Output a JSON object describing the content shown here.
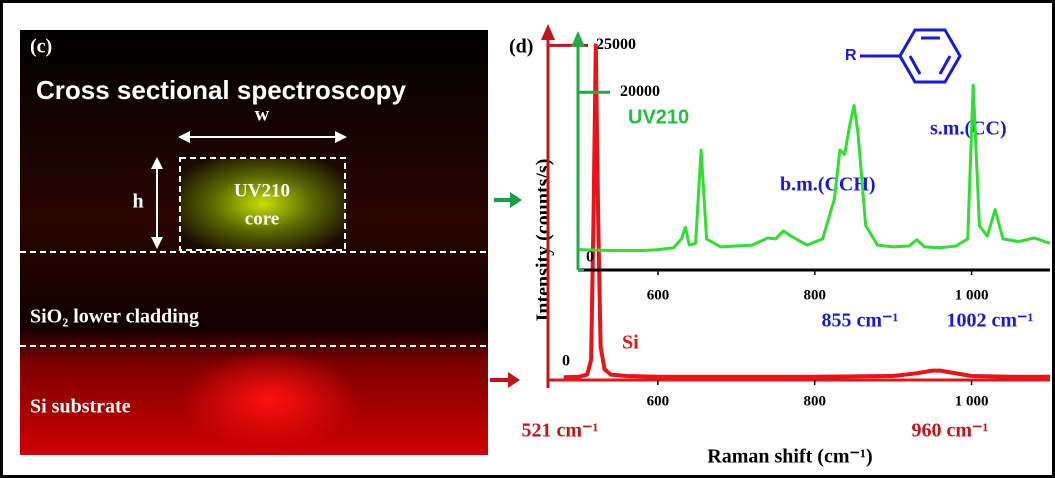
{
  "panel_c": {
    "label": "(c)",
    "title": "Cross sectional spectroscopy",
    "width_label": "w",
    "height_label": "h",
    "core_line1": "UV210",
    "core_line2": "core",
    "cladding": "SiO₂ lower cladding",
    "substrate": "Si substrate"
  },
  "chart_data": [
    {
      "type": "line",
      "title": "(d)",
      "x_label": "Raman shift (cm⁻¹)",
      "y_label": "Intensity (counts/s)",
      "x": [
        480,
        500,
        510,
        515,
        518,
        521,
        524,
        527,
        532,
        540,
        560,
        600,
        700,
        800,
        900,
        930,
        950,
        960,
        970,
        990,
        1000,
        1050,
        1100
      ],
      "series": [
        {
          "name": "Si",
          "color": "#e8141a",
          "values": [
            200,
            250,
            400,
            1500,
            12000,
            25000,
            12000,
            2500,
            800,
            400,
            300,
            250,
            250,
            250,
            300,
            500,
            700,
            700,
            600,
            400,
            300,
            250,
            250
          ]
        }
      ],
      "xlim": [
        460,
        1100
      ],
      "ylim": [
        0,
        26000
      ],
      "xticks": [
        600,
        800,
        {
          "value": 1000,
          "label": "1 000"
        }
      ],
      "yticks": [
        0,
        25000
      ],
      "annotations": [
        "521 cm⁻¹",
        "960 cm⁻¹"
      ]
    },
    {
      "type": "line",
      "x": [
        500,
        540,
        580,
        600,
        620,
        630,
        635,
        640,
        648,
        655,
        662,
        680,
        720,
        740,
        750,
        760,
        770,
        790,
        810,
        825,
        832,
        838,
        845,
        850,
        855,
        865,
        880,
        900,
        920,
        930,
        940,
        960,
        980,
        995,
        1002,
        1010,
        1020,
        1030,
        1040,
        1060,
        1080,
        1100
      ],
      "series": [
        {
          "name": "UV210",
          "color": "#33dd33",
          "values": [
            2300,
            2200,
            2200,
            2300,
            2500,
            3500,
            4800,
            2800,
            3000,
            13500,
            3500,
            2600,
            2800,
            3600,
            3500,
            4400,
            3800,
            2800,
            3500,
            8000,
            13500,
            13000,
            16500,
            18500,
            15500,
            5000,
            2800,
            2600,
            2700,
            3400,
            2600,
            2500,
            2700,
            3500,
            20800,
            5000,
            3800,
            6800,
            3500,
            3200,
            3600,
            3000
          ]
        }
      ],
      "xlim": [
        498,
        1100
      ],
      "ylim": [
        0,
        26000
      ],
      "xticks": [
        600,
        800,
        {
          "value": 1000,
          "label": "1 000"
        }
      ],
      "yticks": [
        0,
        20000
      ],
      "molecule_label": "R",
      "annotations": [
        "b.m.(CCH)",
        "s.m.(CC)",
        "855 cm⁻¹",
        "1002 cm⁻¹"
      ]
    }
  ]
}
